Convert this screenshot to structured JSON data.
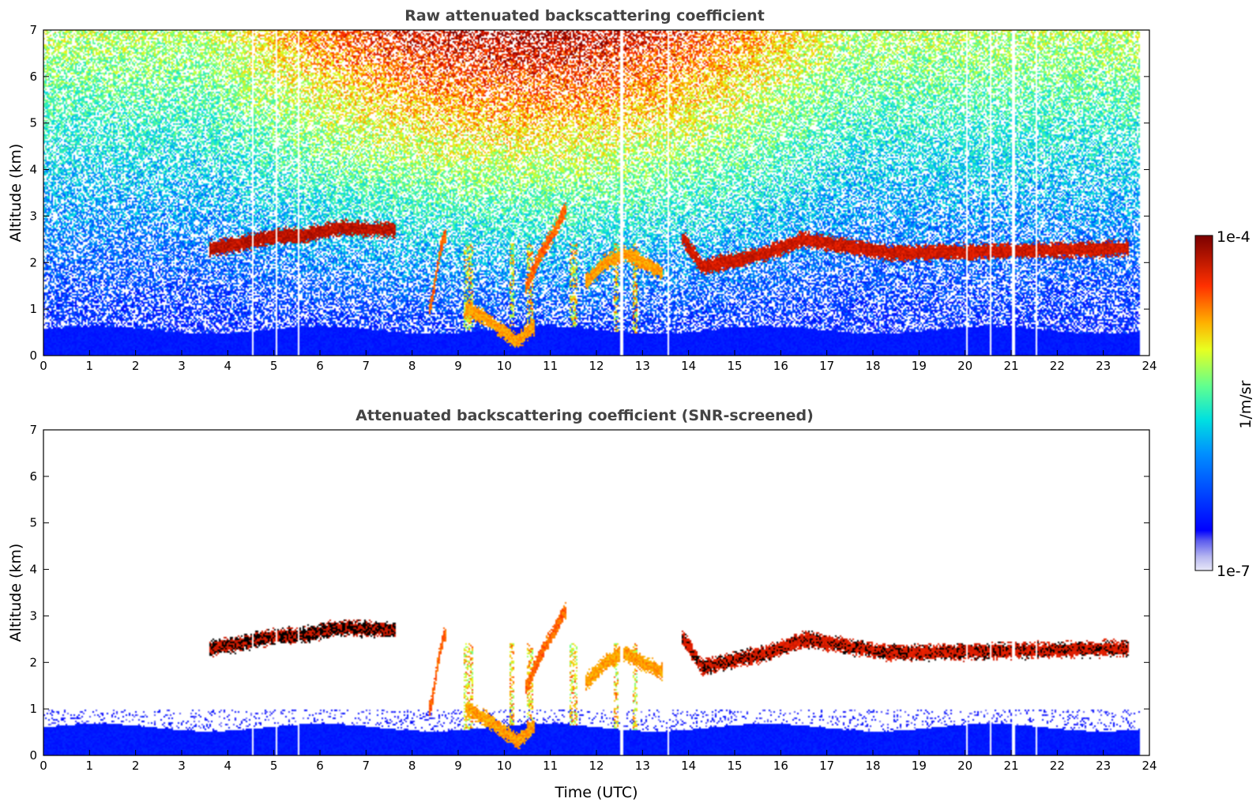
{
  "chart_data": [
    {
      "type": "heatmap",
      "title": "Raw attenuated backscattering coefficient",
      "xlabel": "",
      "ylabel": "Altitude (km)",
      "xlim": [
        0,
        24
      ],
      "ylim": [
        0,
        7
      ],
      "xticks": [
        0,
        1,
        2,
        3,
        4,
        5,
        6,
        7,
        8,
        9,
        10,
        11,
        12,
        13,
        14,
        15,
        16,
        17,
        18,
        19,
        20,
        21,
        22,
        23,
        24
      ],
      "yticks": [
        0,
        1,
        2,
        3,
        4,
        5,
        6,
        7
      ],
      "data_end_time": 23.8,
      "surface_layer_top_km": 0.55,
      "gaps_time": [
        4.55,
        5.05,
        5.55,
        12.55,
        13.55,
        20.05,
        20.55,
        21.05,
        21.55
      ],
      "features": [
        {
          "label": "elevated aerosol layer",
          "x": [
            3.65,
            4.2,
            5.0,
            5.7,
            6.2,
            6.5,
            7.0,
            7.6
          ],
          "y": [
            2.3,
            2.4,
            2.55,
            2.6,
            2.7,
            2.75,
            2.72,
            2.7
          ],
          "level": 0.97
        },
        {
          "label": "cloud",
          "x": [
            8.4,
            8.5,
            8.6,
            8.7
          ],
          "y": [
            1.0,
            1.6,
            2.2,
            2.6
          ],
          "level": 0.85
        },
        {
          "label": "cloud",
          "x": [
            9.2,
            9.6,
            10.0,
            10.3,
            10.6
          ],
          "y": [
            1.0,
            0.8,
            0.5,
            0.3,
            0.6
          ],
          "level": 0.8
        },
        {
          "label": "cloud",
          "x": [
            10.5,
            10.8,
            11.1,
            11.3
          ],
          "y": [
            1.5,
            2.2,
            2.7,
            3.1
          ],
          "level": 0.85
        },
        {
          "label": "cloud",
          "x": [
            11.8,
            12.2,
            12.6,
            13.0,
            13.4
          ],
          "y": [
            1.6,
            2.0,
            2.2,
            2.0,
            1.8
          ],
          "level": 0.8
        },
        {
          "label": "cloud",
          "x": [
            13.9,
            14.3,
            15.7,
            16.5,
            18.4,
            23.5
          ],
          "y": [
            2.5,
            1.9,
            2.2,
            2.5,
            2.2,
            2.3
          ],
          "level": 0.95
        }
      ]
    },
    {
      "type": "heatmap",
      "title": "Attenuated backscattering coefficient (SNR-screened)",
      "xlabel": "Time (UTC)",
      "ylabel": "Altitude (km)",
      "xlim": [
        0,
        24
      ],
      "ylim": [
        0,
        7
      ],
      "xticks": [
        0,
        1,
        2,
        3,
        4,
        5,
        6,
        7,
        8,
        9,
        10,
        11,
        12,
        13,
        14,
        15,
        16,
        17,
        18,
        19,
        20,
        21,
        22,
        23,
        24
      ],
      "yticks": [
        0,
        1,
        2,
        3,
        4,
        5,
        6,
        7
      ],
      "data_end_time": 23.8,
      "surface_layer_top_km": 0.6,
      "screened": true
    }
  ],
  "colorbar": {
    "label": "1/m/sr",
    "max_label": "1e-4",
    "min_label": "1e-7",
    "scale": "log",
    "colormap": "jet",
    "range": [
      1e-07,
      0.0001
    ]
  }
}
